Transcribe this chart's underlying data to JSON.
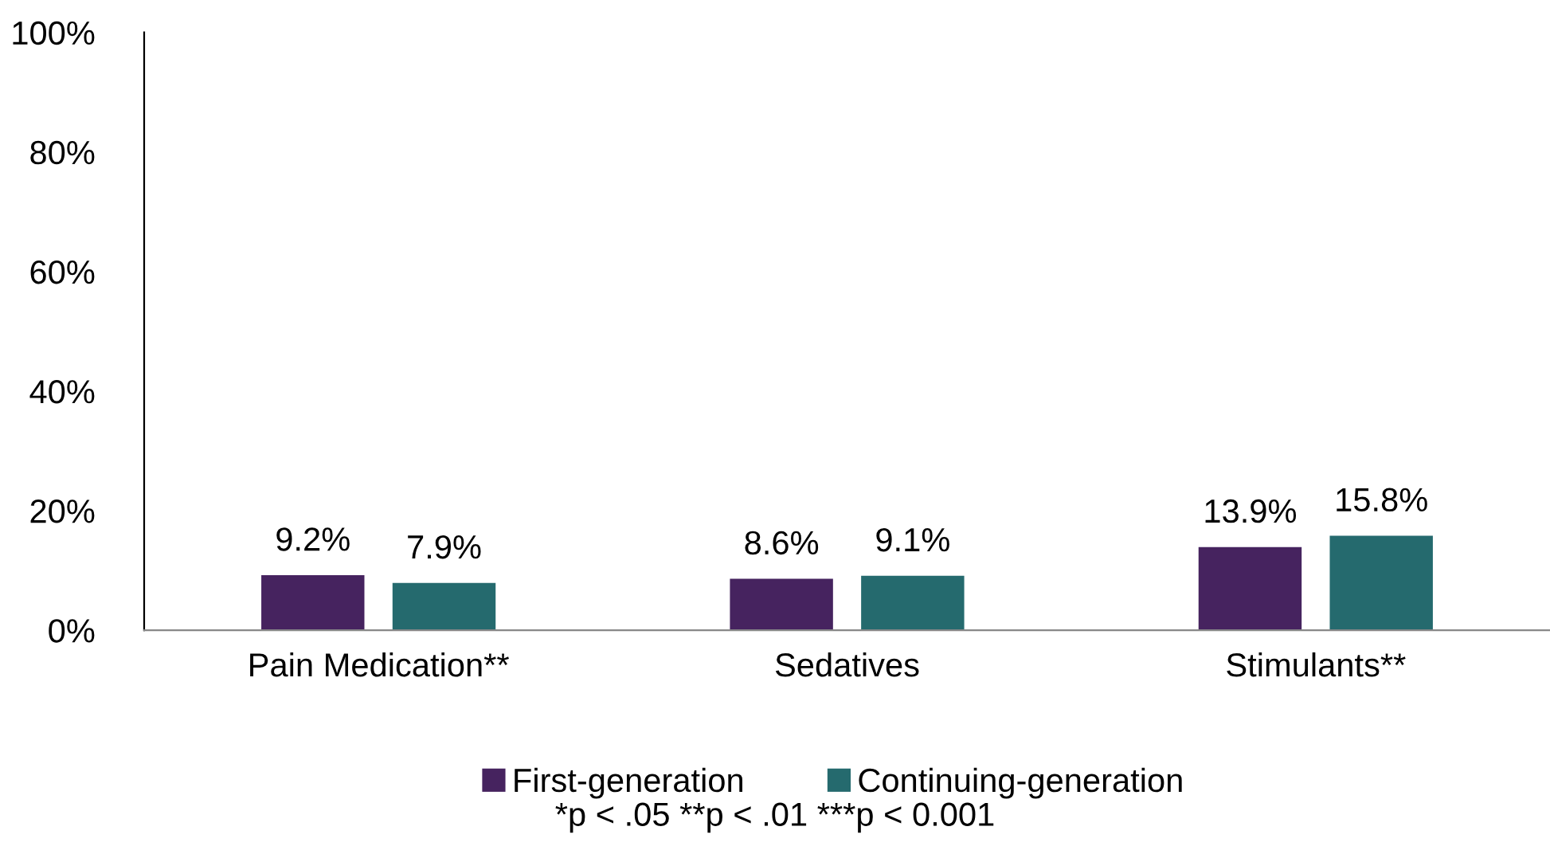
{
  "chart_data": {
    "type": "bar",
    "categories": [
      "Pain Medication**",
      "Sedatives",
      "Stimulants**"
    ],
    "series": [
      {
        "name": "First-generation",
        "color": "#46235f",
        "values": [
          9.2,
          8.6,
          13.9
        ],
        "value_labels": [
          "9.2%",
          "8.6%",
          "13.9%"
        ]
      },
      {
        "name": "Continuing-generation",
        "color": "#256a6e",
        "values": [
          7.9,
          9.1,
          15.8
        ],
        "value_labels": [
          "7.9%",
          "9.1%",
          "15.8%"
        ]
      }
    ],
    "ylim": [
      0,
      100
    ],
    "yticks": [
      {
        "value": 0,
        "label": "0%"
      },
      {
        "value": 20,
        "label": "20%"
      },
      {
        "value": 40,
        "label": "40%"
      },
      {
        "value": 60,
        "label": "60%"
      },
      {
        "value": 80,
        "label": "80%"
      },
      {
        "value": 100,
        "label": "100%"
      }
    ],
    "grid": false,
    "legend": "bottom",
    "annotations": [
      "*p < .05 **p < .01 ***p < 0.001"
    ]
  }
}
